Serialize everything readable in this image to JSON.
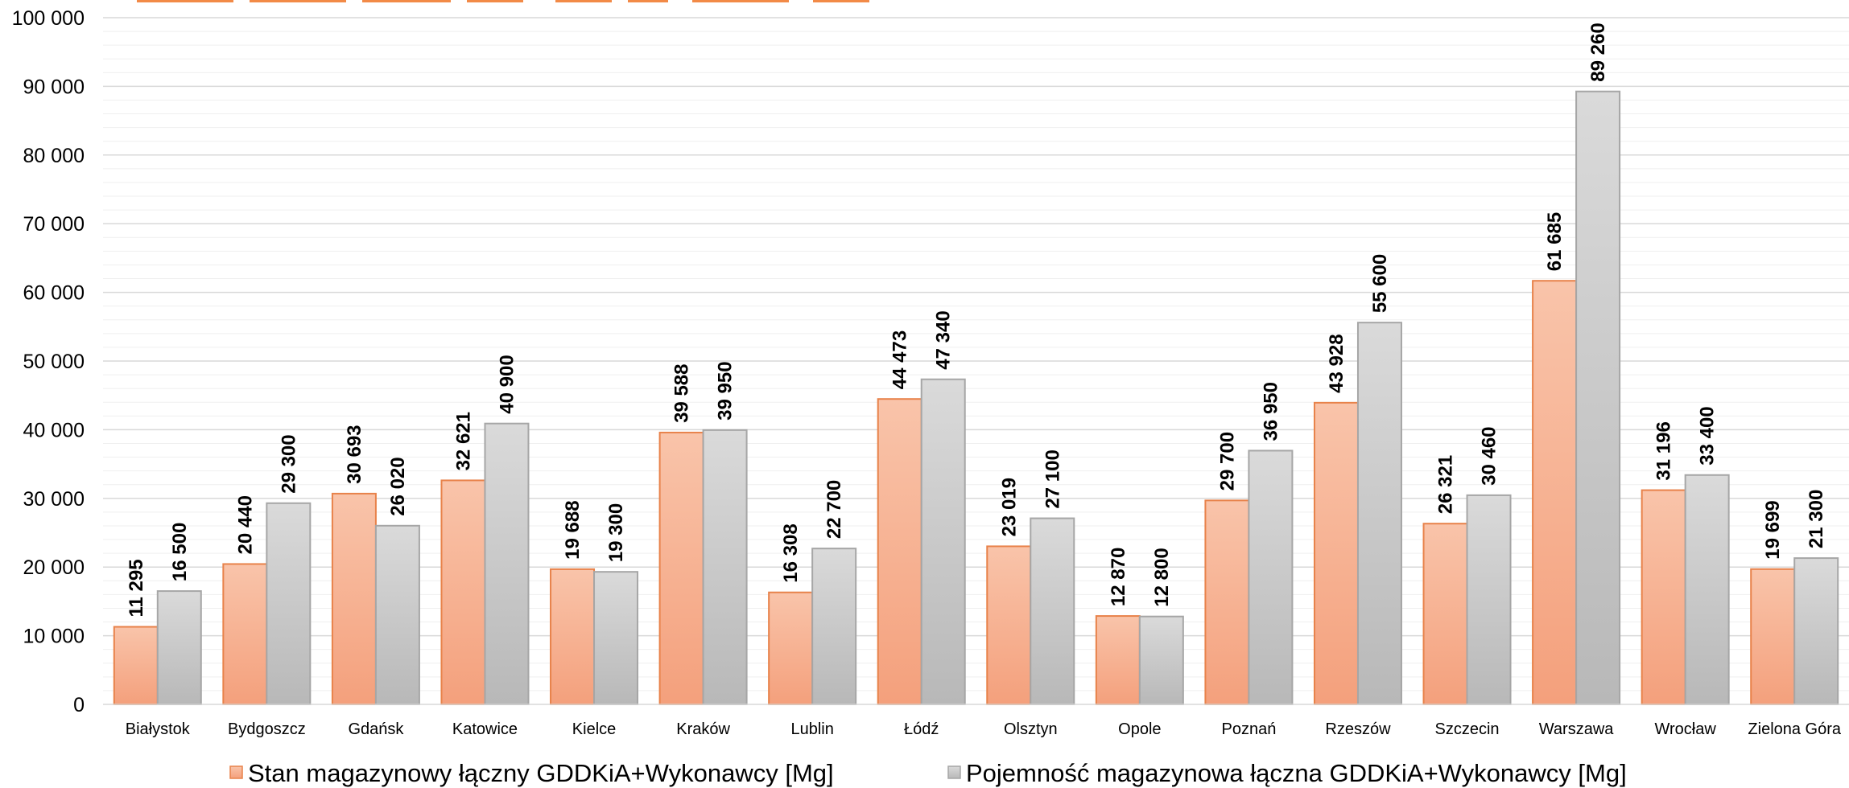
{
  "chart_data": {
    "type": "bar",
    "title": "",
    "xlabel": "",
    "ylabel": "",
    "ylim": [
      0,
      100000
    ],
    "yticks": [
      0,
      10000,
      20000,
      30000,
      40000,
      50000,
      60000,
      70000,
      80000,
      90000,
      100000
    ],
    "ytick_labels": [
      "0",
      "10 000",
      "20 000",
      "30 000",
      "40 000",
      "50 000",
      "60 000",
      "70 000",
      "80 000",
      "90 000",
      "100 000"
    ],
    "grid": "horizontal major and minor",
    "legend_position": "bottom",
    "categories": [
      "Białystok",
      "Bydgoszcz",
      "Gdańsk",
      "Katowice",
      "Kielce",
      "Kraków",
      "Lublin",
      "Łódź",
      "Olsztyn",
      "Opole",
      "Poznań",
      "Rzeszów",
      "Szczecin",
      "Warszawa",
      "Wrocław",
      "Zielona Góra"
    ],
    "series": [
      {
        "name": "Stan magazynowy łączny GDDKiA+Wykonawcy [Mg]",
        "color": "#F4A582",
        "values": [
          11295,
          20440,
          30693,
          32621,
          19688,
          39588,
          16308,
          44473,
          23019,
          12870,
          29700,
          43928,
          26321,
          61685,
          31196,
          19699
        ],
        "labels": [
          "11 295",
          "20 440",
          "30 693",
          "32 621",
          "19 688",
          "39 588",
          "16 308",
          "44 473",
          "23 019",
          "12 870",
          "29 700",
          "43 928",
          "26 321",
          "61 685",
          "31 196",
          "19 699"
        ]
      },
      {
        "name": "Pojemność magazynowa łączna GDDKiA+Wykonawcy [Mg]",
        "color": "#BFBFBF",
        "values": [
          16500,
          29300,
          26020,
          40900,
          19300,
          39950,
          22700,
          47340,
          27100,
          12800,
          36950,
          55600,
          30460,
          89260,
          33400,
          21300
        ],
        "labels": [
          "16 500",
          "29 300",
          "26 020",
          "40 900",
          "19 300",
          "39 950",
          "22 700",
          "47 340",
          "27 100",
          "12 800",
          "36 950",
          "55 600",
          "30 460",
          "89 260",
          "33 400",
          "21 300"
        ]
      }
    ]
  }
}
